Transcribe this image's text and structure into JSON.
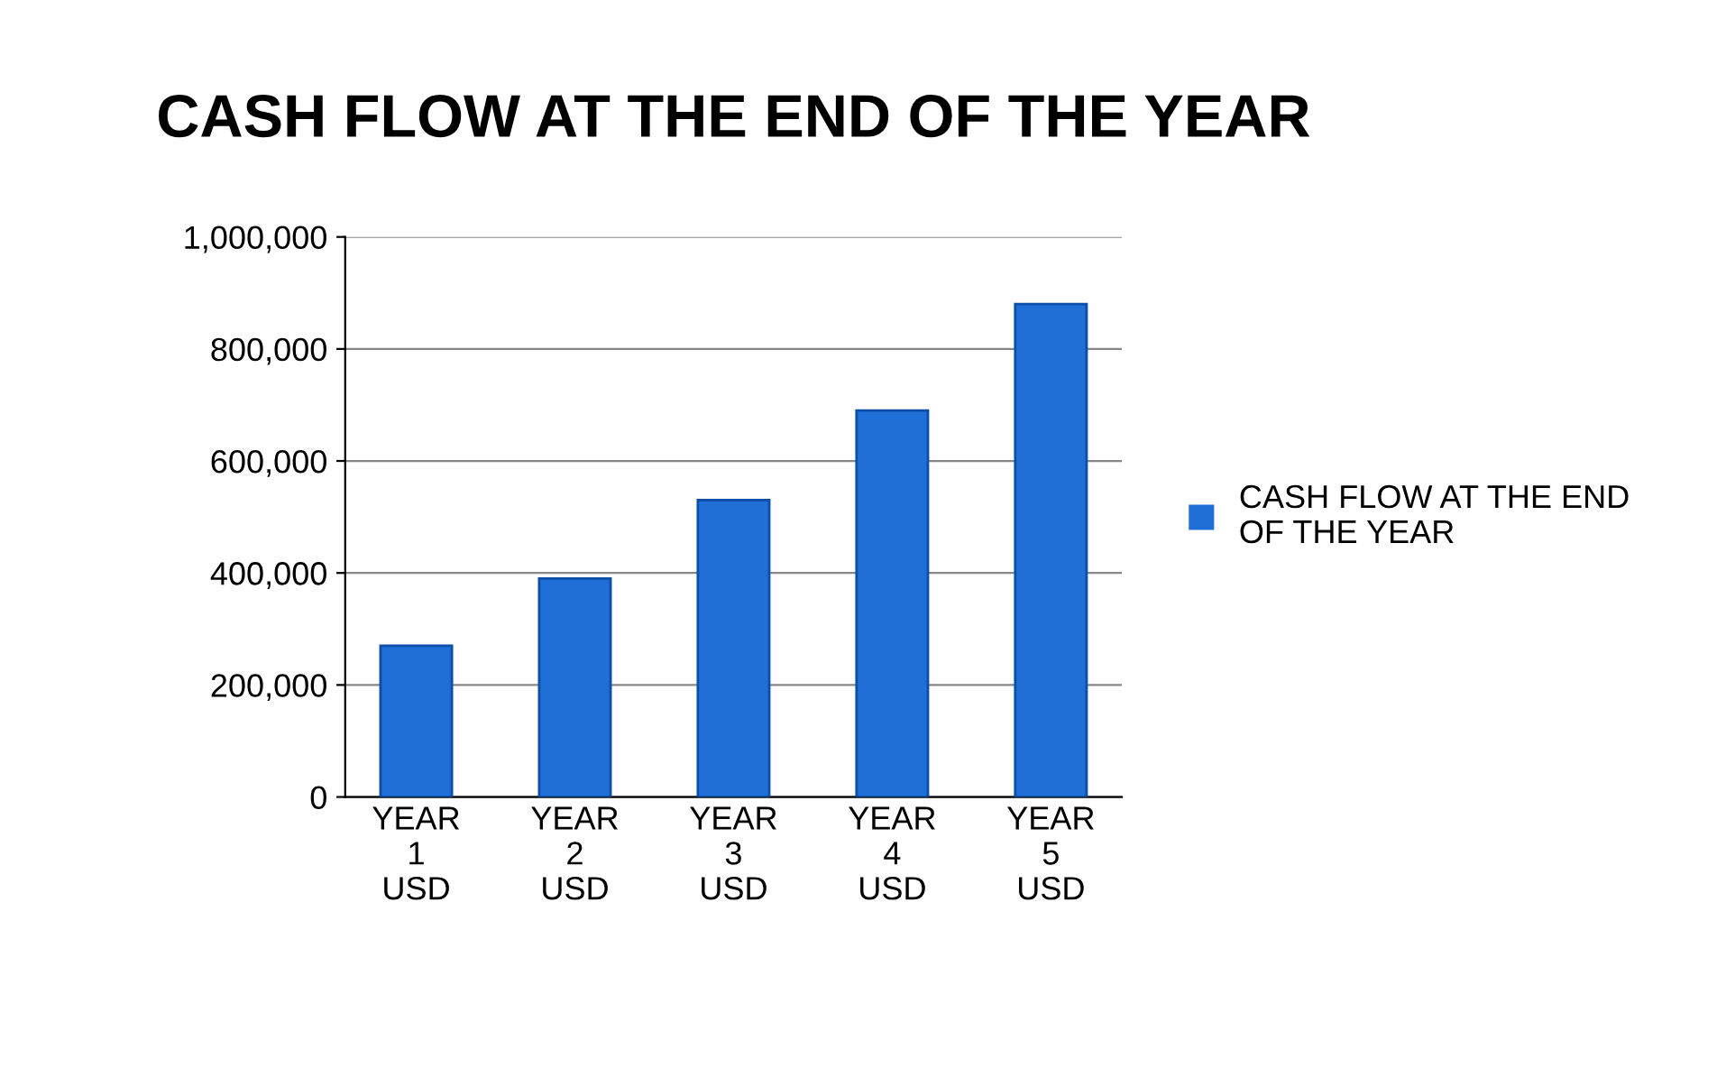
{
  "chart_data": {
    "type": "bar",
    "title": "CASH FLOW AT THE END OF THE YEAR",
    "categories": [
      "YEAR\n1\nUSD",
      "YEAR\n2\nUSD",
      "YEAR\n3\nUSD",
      "YEAR\n4\nUSD",
      "YEAR\n5\nUSD"
    ],
    "series": [
      {
        "name": "CASH FLOW AT THE END\nOF THE YEAR",
        "color": "#1f6fd6",
        "values": [
          270000,
          390000,
          530000,
          690000,
          880000
        ]
      }
    ],
    "ylim": [
      0,
      1000000
    ],
    "yticks": [
      {
        "value": 0,
        "label": "0"
      },
      {
        "value": 200000,
        "label": "200,000"
      },
      {
        "value": 400000,
        "label": "400,000"
      },
      {
        "value": 600000,
        "label": "600,000"
      },
      {
        "value": 800000,
        "label": "800,000"
      },
      {
        "value": 1000000,
        "label": "1,000,000"
      }
    ],
    "grid": "y",
    "legend": "right"
  }
}
